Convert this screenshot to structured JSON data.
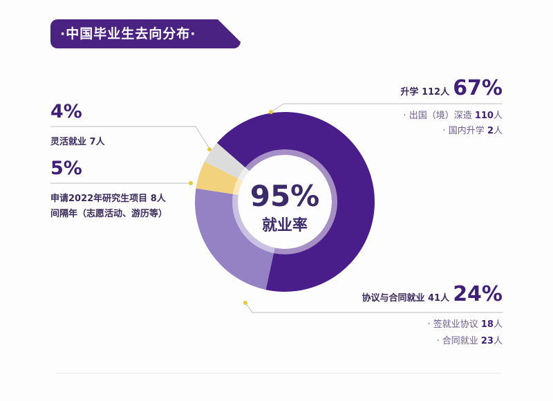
{
  "title": "·中国毕业生去向分布·",
  "center": {
    "value": "95%",
    "label": "就业率"
  },
  "labels": {
    "further_study": {
      "label": "升学 112人",
      "pct": "67%",
      "items": [
        {
          "name": "出国（境）深造",
          "count": "110",
          "unit": "人"
        },
        {
          "name": "国内升学",
          "count": "2",
          "unit": "人"
        }
      ]
    },
    "employment": {
      "label": "协议与合同就业 41人",
      "pct": "24%",
      "items": [
        {
          "name": "签就业协议",
          "count": "18",
          "unit": "人"
        },
        {
          "name": "合同就业",
          "count": "23",
          "unit": "人"
        }
      ]
    },
    "flexible": {
      "pct": "4%",
      "label": "灵活就业 7人"
    },
    "gap": {
      "pct": "5%",
      "line1": "申请2022年研究生项目 8人",
      "line2": "间隔年（志愿活动、游历等）"
    }
  },
  "chart_data": {
    "type": "pie",
    "donut": true,
    "title": "中国毕业生去向分布",
    "slices": [
      {
        "name": "升学",
        "count": 112,
        "value": 67,
        "color": "#4a1e8a"
      },
      {
        "name": "协议与合同就业",
        "count": 41,
        "value": 24,
        "color": "#9482c4"
      },
      {
        "name": "申请2022年研究生项目/间隔年",
        "count": 8,
        "value": 5,
        "color": "#f2d27c"
      },
      {
        "name": "灵活就业",
        "count": 7,
        "value": 4,
        "color": "#dcdcdc"
      }
    ]
  }
}
